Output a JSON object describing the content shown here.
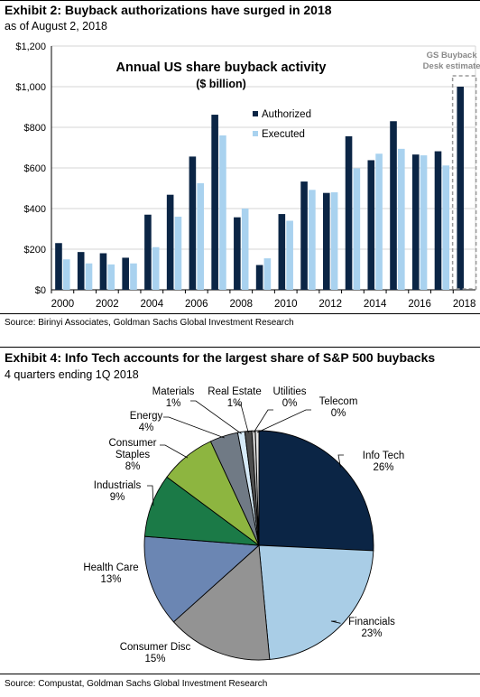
{
  "colors": {
    "authorized": "#0b2545",
    "executed": "#a9d2ef",
    "rule": "#000000",
    "estimate_box": "#9a9a9a"
  },
  "exhibit2": {
    "title": "Exhibit 2: Buyback authorizations have surged in 2018",
    "subtitle": "as of August 2, 2018",
    "source": "Source: Birinyi Associates, Goldman Sachs Global Investment Research"
  },
  "exhibit4": {
    "title": "Exhibit 4: Info Tech accounts for the largest share of S&P 500 buybacks",
    "subtitle": "4 quarters ending 1Q 2018",
    "source": "Source: Compustat, Goldman Sachs Global Investment Research"
  },
  "chart_data": [
    {
      "type": "bar",
      "title": "Annual US share buyback activity",
      "subtitle": "($ billion)",
      "xlabel": "",
      "ylabel": "",
      "ylim": [
        0,
        1200
      ],
      "yticks": [
        0,
        200,
        400,
        600,
        800,
        1000,
        1200
      ],
      "ytick_labels": [
        "$0",
        "$200",
        "$400",
        "$600",
        "$800",
        "$1,000",
        "$1,200"
      ],
      "grid": true,
      "legend": "top-center",
      "categories": [
        2000,
        2001,
        2002,
        2003,
        2004,
        2005,
        2006,
        2007,
        2008,
        2009,
        2010,
        2011,
        2012,
        2013,
        2014,
        2015,
        2016,
        2017,
        2018
      ],
      "xtick_labels": [
        "2000",
        "2002",
        "2004",
        "2006",
        "2008",
        "2010",
        "2012",
        "2014",
        "2016",
        "2018"
      ],
      "series": [
        {
          "name": "Authorized",
          "values": [
            230,
            186,
            180,
            158,
            370,
            468,
            656,
            862,
            357,
            122,
            373,
            533,
            477,
            756,
            638,
            830,
            666,
            682,
            1000
          ]
        },
        {
          "name": "Executed",
          "values": [
            150,
            130,
            125,
            130,
            210,
            360,
            525,
            760,
            400,
            155,
            340,
            492,
            480,
            598,
            670,
            694,
            662,
            612,
            null
          ]
        }
      ],
      "annotation": {
        "text_line1": "GS Buyback",
        "text_line2": "Desk estimate",
        "target": 2018
      }
    },
    {
      "type": "pie",
      "slices": [
        {
          "label": "Info Tech",
          "value": 26,
          "value_label": "26%",
          "color": "#0b2545"
        },
        {
          "label": "Financials",
          "value": 23,
          "value_label": "23%",
          "color": "#a9cde6"
        },
        {
          "label": "Consumer Disc",
          "value": 15,
          "value_label": "15%",
          "color": "#939393"
        },
        {
          "label": "Health Care",
          "value": 13,
          "value_label": "13%",
          "color": "#6b86b3"
        },
        {
          "label": "Industrials",
          "value": 9,
          "value_label": "9%",
          "color": "#1b7a47"
        },
        {
          "label": "Consumer Staples",
          "label_lines": [
            "Consumer",
            "Staples"
          ],
          "value": 8,
          "value_label": "8%",
          "color": "#8db540"
        },
        {
          "label": "Energy",
          "value": 4,
          "value_label": "4%",
          "color": "#707a85"
        },
        {
          "label": "Materials",
          "value": 1,
          "value_label": "1%",
          "color": "#d6eaf7"
        },
        {
          "label": "Real Estate",
          "value": 1,
          "value_label": "1%",
          "color": "#4d4d4d"
        },
        {
          "label": "Utilities",
          "value": 0.5,
          "value_label": "0%",
          "color": "#c4c4c4"
        },
        {
          "label": "Telecom",
          "value": 0.5,
          "value_label": "0%",
          "color": "#e6e6e6"
        }
      ]
    }
  ]
}
